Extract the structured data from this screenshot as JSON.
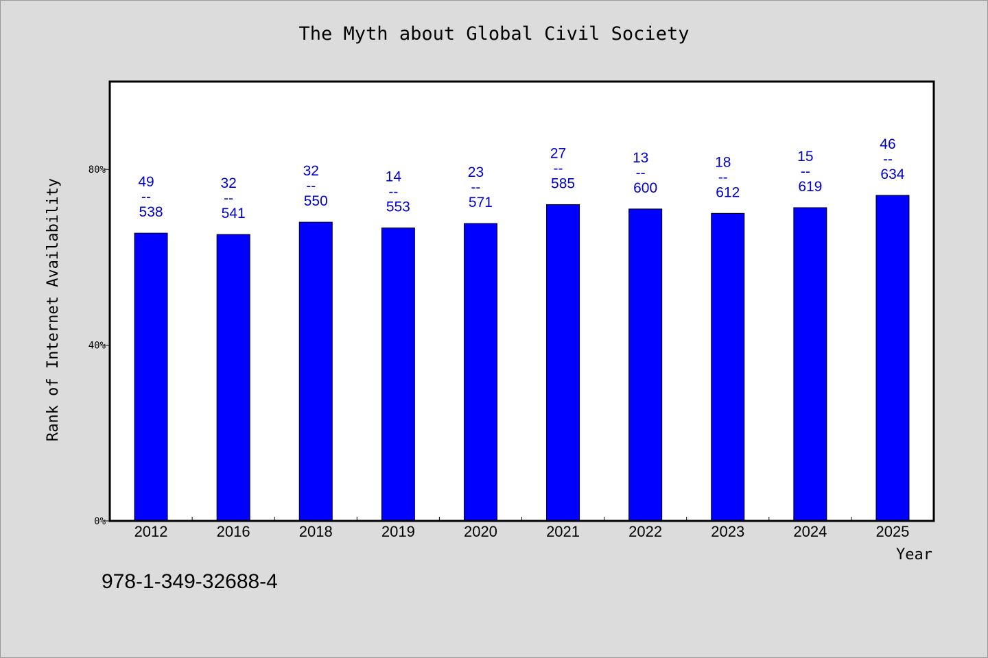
{
  "chart_data": {
    "type": "bar",
    "title": "The Myth about Global Civil Society",
    "xlabel": "Year",
    "ylabel": "Rank of Internet Availability",
    "ylim": [
      0,
      100
    ],
    "yticks": [
      "0%",
      "40%",
      "80%"
    ],
    "ytick_values": [
      0,
      40,
      80
    ],
    "categories": [
      "2012",
      "2016",
      "2018",
      "2019",
      "2020",
      "2021",
      "2022",
      "2023",
      "2024",
      "2025"
    ],
    "values": [
      65.5,
      65.2,
      68,
      66.7,
      67.7,
      72,
      71,
      70,
      71.3,
      74.1
    ],
    "label_top": [
      "49",
      "32",
      "32",
      "14",
      "23",
      "27",
      "13",
      "18",
      "15",
      "46"
    ],
    "label_sep": "--",
    "label_bottom": [
      "538",
      "541",
      "550",
      "553",
      "571",
      "585",
      "600",
      "612",
      "619",
      "634"
    ],
    "bar_color": "#0000ff",
    "label_color": "#0000cc",
    "grid": false
  },
  "footer": {
    "isbn": "978-1-349-32688-4"
  }
}
